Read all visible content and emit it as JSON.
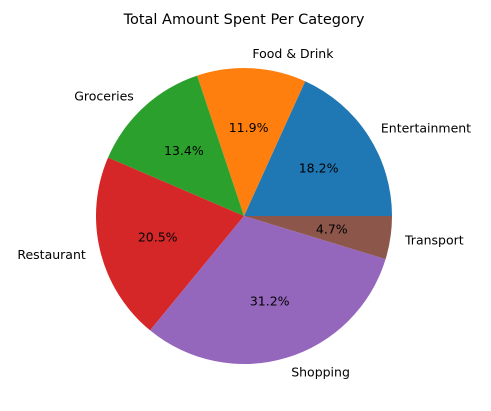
{
  "chart_data": {
    "type": "pie",
    "title": "Total Amount Spent Per Category",
    "categories": [
      "Entertainment",
      "Food & Drink",
      "Groceries",
      "Restaurant",
      "Shopping",
      "Transport"
    ],
    "values": [
      18.2,
      11.9,
      13.4,
      20.5,
      31.2,
      4.7
    ],
    "value_labels": [
      "18.2%",
      "11.9%",
      "13.4%",
      "20.5%",
      "31.2%",
      "4.7%"
    ],
    "colors": [
      "#1f77b4",
      "#ff7f0e",
      "#2ca02c",
      "#d62728",
      "#9467bd",
      "#8c564b"
    ],
    "start_angle_deg": 0,
    "direction": "counterclockwise",
    "legend": "none"
  }
}
